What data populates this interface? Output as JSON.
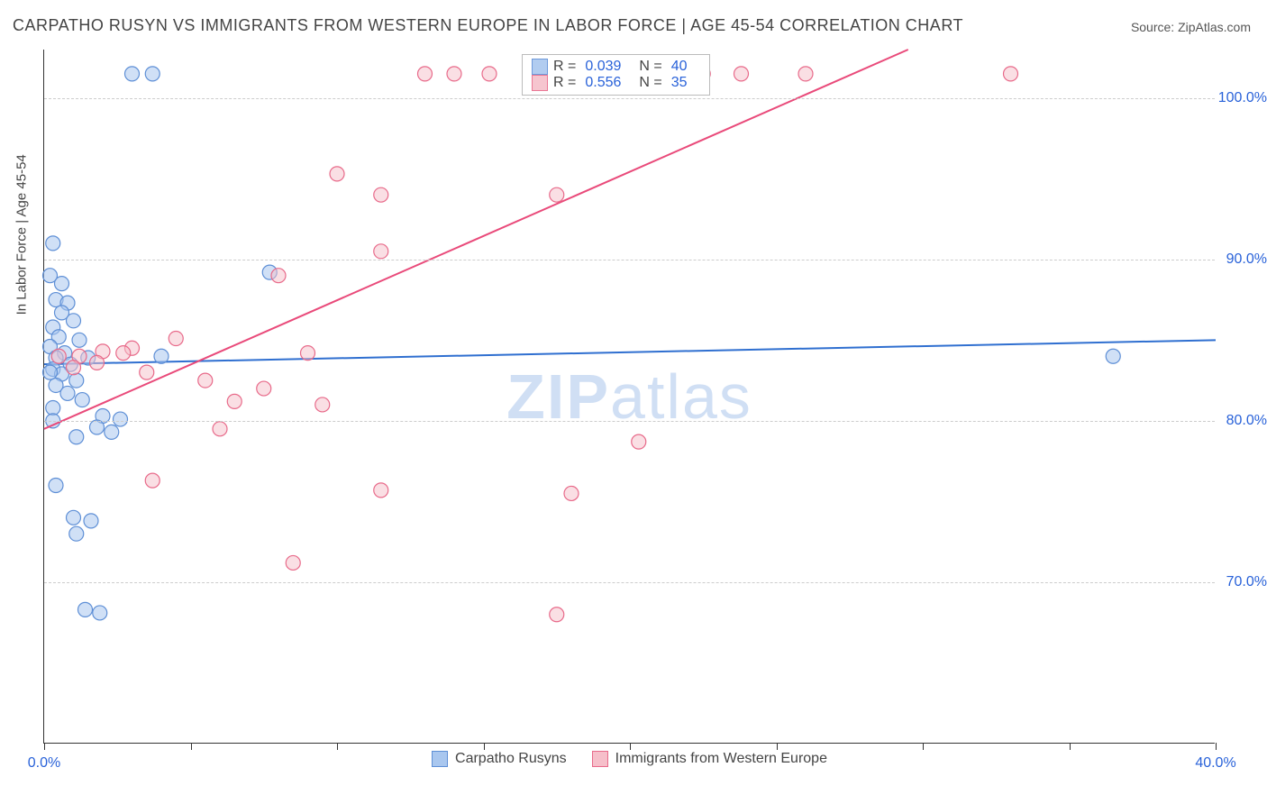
{
  "title": "CARPATHO RUSYN VS IMMIGRANTS FROM WESTERN EUROPE IN LABOR FORCE | AGE 45-54 CORRELATION CHART",
  "source_label": "Source:",
  "source_name": "ZipAtlas.com",
  "ylabel": "In Labor Force | Age 45-54",
  "watermark_1": "ZIP",
  "watermark_2": "atlas",
  "chart": {
    "type": "scatter",
    "xlim": [
      0,
      40
    ],
    "ylim": [
      60,
      103
    ],
    "xticks": [
      0,
      5,
      10,
      15,
      20,
      25,
      30,
      35,
      40
    ],
    "xtick_labels": {
      "0": "0.0%",
      "40": "40.0%"
    },
    "yticks": [
      70,
      80,
      90,
      100
    ],
    "ytick_labels": [
      "70.0%",
      "80.0%",
      "90.0%",
      "100.0%"
    ],
    "grid_color": "#cccccc",
    "axis_color": "#333333",
    "label_fontsize": 16,
    "tick_color": "#2962d9",
    "background_color": "#ffffff",
    "marker_radius": 8,
    "marker_stroke_width": 1.2,
    "line_width": 2,
    "series": [
      {
        "key": "blue",
        "label": "Carpatho Rusyns",
        "fill": "#a9c7ef",
        "stroke": "#5e8fd6",
        "fill_opacity": 0.55,
        "line_color": "#2f6fd0",
        "R": "0.039",
        "N": "40",
        "regression": {
          "x1": 0,
          "y1": 83.5,
          "x2": 40,
          "y2": 85.0
        },
        "points": [
          [
            3.0,
            101.5
          ],
          [
            3.7,
            101.5
          ],
          [
            0.3,
            91.0
          ],
          [
            0.2,
            89.0
          ],
          [
            0.6,
            88.5
          ],
          [
            0.4,
            87.5
          ],
          [
            0.8,
            87.3
          ],
          [
            0.6,
            86.7
          ],
          [
            1.0,
            86.2
          ],
          [
            0.3,
            85.8
          ],
          [
            0.5,
            85.2
          ],
          [
            1.2,
            85.0
          ],
          [
            0.2,
            84.6
          ],
          [
            0.7,
            84.2
          ],
          [
            0.4,
            83.9
          ],
          [
            1.5,
            83.9
          ],
          [
            0.9,
            83.5
          ],
          [
            0.3,
            83.2
          ],
          [
            0.6,
            82.9
          ],
          [
            1.1,
            82.5
          ],
          [
            0.4,
            82.2
          ],
          [
            0.8,
            81.7
          ],
          [
            1.3,
            81.3
          ],
          [
            0.3,
            80.8
          ],
          [
            2.0,
            80.3
          ],
          [
            2.6,
            80.1
          ],
          [
            0.3,
            80.0
          ],
          [
            1.8,
            79.6
          ],
          [
            2.3,
            79.3
          ],
          [
            1.1,
            79.0
          ],
          [
            0.4,
            76.0
          ],
          [
            1.0,
            74.0
          ],
          [
            1.6,
            73.8
          ],
          [
            1.1,
            73.0
          ],
          [
            1.4,
            68.3
          ],
          [
            1.9,
            68.1
          ],
          [
            36.5,
            84.0
          ],
          [
            7.7,
            89.2
          ],
          [
            4.0,
            84.0
          ],
          [
            0.2,
            83.0
          ]
        ]
      },
      {
        "key": "pink",
        "label": "Immigrants from Western Europe",
        "fill": "#f6bfca",
        "stroke": "#e86a8a",
        "fill_opacity": 0.5,
        "line_color": "#e94a7a",
        "R": "0.556",
        "N": "35",
        "regression": {
          "x1": 0,
          "y1": 79.5,
          "x2": 29.5,
          "y2": 103.0
        },
        "points": [
          [
            13.0,
            101.5
          ],
          [
            14.0,
            101.5
          ],
          [
            15.2,
            101.5
          ],
          [
            19.0,
            101.5
          ],
          [
            20.5,
            101.5
          ],
          [
            22.5,
            101.5
          ],
          [
            23.8,
            101.5
          ],
          [
            26.0,
            101.5
          ],
          [
            33.0,
            101.5
          ],
          [
            10.0,
            95.3
          ],
          [
            11.5,
            94.0
          ],
          [
            17.5,
            94.0
          ],
          [
            11.5,
            90.5
          ],
          [
            8.0,
            89.0
          ],
          [
            4.5,
            85.1
          ],
          [
            3.0,
            84.5
          ],
          [
            2.0,
            84.3
          ],
          [
            2.7,
            84.2
          ],
          [
            1.2,
            84.0
          ],
          [
            1.8,
            83.6
          ],
          [
            1.0,
            83.3
          ],
          [
            3.5,
            83.0
          ],
          [
            9.0,
            84.2
          ],
          [
            5.5,
            82.5
          ],
          [
            7.5,
            82.0
          ],
          [
            6.5,
            81.2
          ],
          [
            9.5,
            81.0
          ],
          [
            6.0,
            79.5
          ],
          [
            20.3,
            78.7
          ],
          [
            3.7,
            76.3
          ],
          [
            11.5,
            75.7
          ],
          [
            18.0,
            75.5
          ],
          [
            8.5,
            71.2
          ],
          [
            17.5,
            68.0
          ],
          [
            0.5,
            84.0
          ]
        ]
      }
    ]
  },
  "legend_top": {
    "R_label": "R =",
    "N_label": "N ="
  },
  "legend_bottom_labels": [
    "Carpatho Rusyns",
    "Immigrants from Western Europe"
  ]
}
